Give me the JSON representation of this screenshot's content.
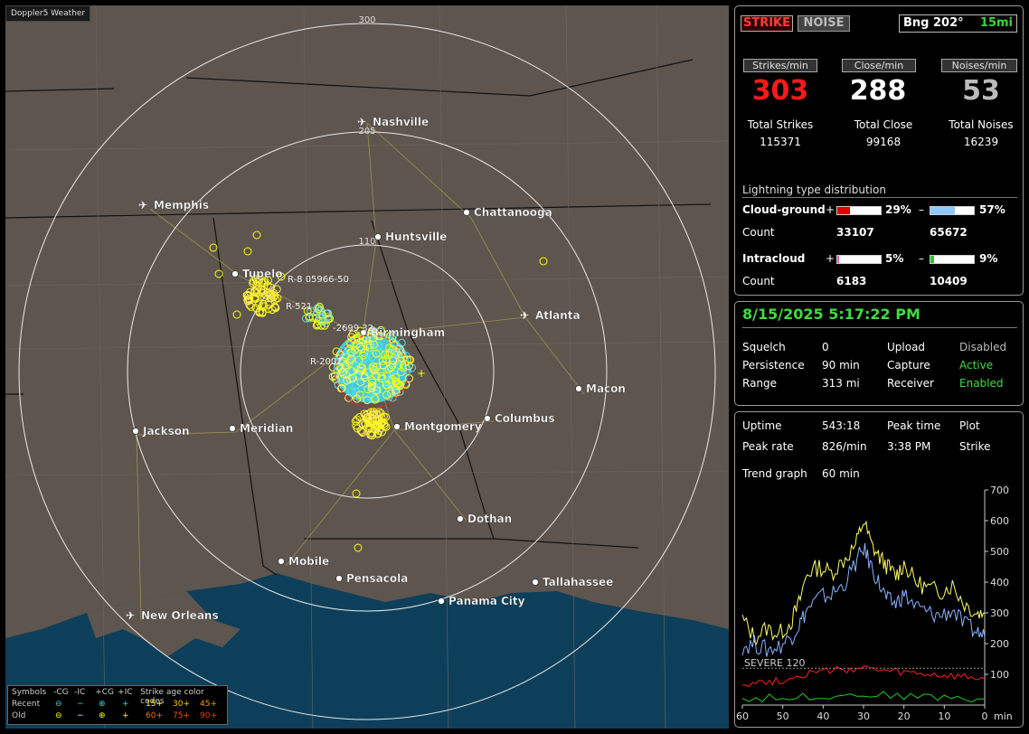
{
  "app": {
    "title": "Doppler5 Weather"
  },
  "map": {
    "cities": [
      {
        "name": "Nashville",
        "airport": true
      },
      {
        "name": "Memphis",
        "airport": true
      },
      {
        "name": "Chattanooga",
        "airport": false
      },
      {
        "name": "Huntsville",
        "airport": false
      },
      {
        "name": "Tupelo",
        "airport": false
      },
      {
        "name": "Birmingham",
        "airport": false
      },
      {
        "name": "Atlanta",
        "airport": true
      },
      {
        "name": "Macon",
        "airport": false
      },
      {
        "name": "Jackson",
        "airport": false
      },
      {
        "name": "Meridian",
        "airport": false
      },
      {
        "name": "Montgomery",
        "airport": false
      },
      {
        "name": "Columbus",
        "airport": false
      },
      {
        "name": "Dothan",
        "airport": false
      },
      {
        "name": "Mobile",
        "airport": false
      },
      {
        "name": "Pensacola",
        "airport": false
      },
      {
        "name": "Tallahassee",
        "airport": false
      },
      {
        "name": "Panama City",
        "airport": false
      },
      {
        "name": "New Orleans",
        "airport": true
      }
    ],
    "range_labels": [
      "300",
      "205",
      "110"
    ],
    "storm_labels": [
      "R-2002",
      "R-521",
      "-2699 32",
      "R-8 05966-50"
    ],
    "legend": {
      "symbols_label": "Symbols",
      "recent_label": "Recent",
      "old_label": "Old",
      "col_ncg": "-CG",
      "col_nic": "-IC",
      "col_pcg": "+CG",
      "col_pic": "+IC",
      "age_title": "Strike age color codes",
      "recent_ages": [
        "15+",
        "30+",
        "45+"
      ],
      "old_ages": [
        "60+",
        "75+",
        "90+"
      ],
      "recent_color": "#ffff00",
      "old_colors": [
        "#ff9900",
        "#ff6600",
        "#ff3300"
      ],
      "recent_age_colors": [
        "#ffff00",
        "#ffcc00",
        "#ff9900"
      ],
      "old_age_colors": [
        "#ff7700",
        "#ff5500",
        "#ff3300"
      ]
    }
  },
  "status": {
    "strike_btn": "STRIKE",
    "noise_btn": "NOISE",
    "bearing": "Bng 202°",
    "range": "15mi",
    "rates": [
      {
        "header": "Strikes/min",
        "value": "303",
        "total_label": "Total Strikes",
        "total": "115371",
        "color": "#ff1a1a"
      },
      {
        "header": "Close/min",
        "value": "288",
        "total_label": "Total Close",
        "total": "99168",
        "color": "#ffffff"
      },
      {
        "header": "Noises/min",
        "value": "53",
        "total_label": "Total Noises",
        "total": "16239",
        "color": "#bbbbbb"
      }
    ],
    "dist_title": "Lightning type distribution",
    "cloud_ground": {
      "label": "Cloud-ground",
      "pos_sign": "+",
      "pos_pct": "29%",
      "pos_fraction": 0.29,
      "pos_color": "#e00000",
      "neg_sign": "–",
      "neg_pct": "57%",
      "neg_fraction": 0.57,
      "neg_color": "#8ec8ff",
      "count_label": "Count",
      "pos_count": "33107",
      "neg_count": "65672"
    },
    "intracloud": {
      "label": "Intracloud",
      "pos_sign": "+",
      "pos_pct": "5%",
      "pos_fraction": 0.05,
      "pos_color": "#e060a0",
      "neg_sign": "–",
      "neg_pct": "9%",
      "neg_fraction": 0.09,
      "neg_color": "#22cc22",
      "count_label": "Count",
      "pos_count": "6183",
      "neg_count": "10409"
    }
  },
  "settings": {
    "datetime": "8/15/2025 5:17:22 PM",
    "squelch_label": "Squelch",
    "squelch": "0",
    "persistence_label": "Persistence",
    "persistence": "90 min",
    "range_label": "Range",
    "range": "313 mi",
    "upload_label": "Upload",
    "upload": "Disabled",
    "capture_label": "Capture",
    "capture": "Active",
    "receiver_label": "Receiver",
    "receiver": "Enabled"
  },
  "stats": {
    "uptime_label": "Uptime",
    "uptime": "543:18",
    "peak_time_label": "Peak time",
    "peak_time": "3:38 PM",
    "plot_label": "Plot",
    "plot": "Strike",
    "peak_rate_label": "Peak rate",
    "peak_rate": "826/min",
    "trend_label": "Trend graph",
    "trend": "60 min"
  },
  "chart_data": {
    "type": "line",
    "x_ticks": [
      "60",
      "50",
      "40",
      "30",
      "20",
      "10",
      "0"
    ],
    "x_unit": "min",
    "y_ticks": [
      "700",
      "600",
      "500",
      "400",
      "300",
      "200",
      "100"
    ],
    "ylim": [
      0,
      700
    ],
    "xlim": [
      60,
      0
    ],
    "threshold": {
      "label": "SEVERE 120",
      "value": 120
    },
    "series": [
      {
        "color": "#ffff66",
        "anchors": [
          [
            60,
            280
          ],
          [
            57,
            220
          ],
          [
            54,
            250
          ],
          [
            51,
            230
          ],
          [
            48,
            270
          ],
          [
            46,
            330
          ],
          [
            44,
            430
          ],
          [
            41,
            450
          ],
          [
            38,
            430
          ],
          [
            35,
            470
          ],
          [
            32,
            520
          ],
          [
            30,
            600
          ],
          [
            28,
            520
          ],
          [
            26,
            480
          ],
          [
            24,
            450
          ],
          [
            22,
            420
          ],
          [
            20,
            460
          ],
          [
            17,
            400
          ],
          [
            14,
            380
          ],
          [
            11,
            370
          ],
          [
            8,
            390
          ],
          [
            5,
            330
          ],
          [
            2,
            300
          ],
          [
            0,
            300
          ]
        ]
      },
      {
        "color": "#8ab4ff",
        "anchors": [
          [
            60,
            190
          ],
          [
            57,
            200
          ],
          [
            54,
            180
          ],
          [
            51,
            190
          ],
          [
            48,
            220
          ],
          [
            46,
            260
          ],
          [
            44,
            310
          ],
          [
            41,
            350
          ],
          [
            38,
            360
          ],
          [
            35,
            390
          ],
          [
            32,
            460
          ],
          [
            30,
            510
          ],
          [
            28,
            450
          ],
          [
            26,
            390
          ],
          [
            24,
            340
          ],
          [
            22,
            330
          ],
          [
            20,
            360
          ],
          [
            17,
            320
          ],
          [
            14,
            300
          ],
          [
            11,
            290
          ],
          [
            8,
            310
          ],
          [
            5,
            260
          ],
          [
            2,
            240
          ],
          [
            0,
            220
          ]
        ]
      },
      {
        "color": "#ff2020",
        "anchors": [
          [
            60,
            70
          ],
          [
            55,
            75
          ],
          [
            50,
            80
          ],
          [
            45,
            100
          ],
          [
            40,
            110
          ],
          [
            35,
            115
          ],
          [
            30,
            120
          ],
          [
            25,
            110
          ],
          [
            20,
            105
          ],
          [
            15,
            100
          ],
          [
            10,
            95
          ],
          [
            5,
            90
          ],
          [
            0,
            85
          ]
        ]
      },
      {
        "color": "#22cc22",
        "anchors": [
          [
            60,
            20
          ],
          [
            50,
            25
          ],
          [
            40,
            30
          ],
          [
            30,
            35
          ],
          [
            20,
            30
          ],
          [
            10,
            25
          ],
          [
            0,
            20
          ]
        ]
      }
    ]
  }
}
